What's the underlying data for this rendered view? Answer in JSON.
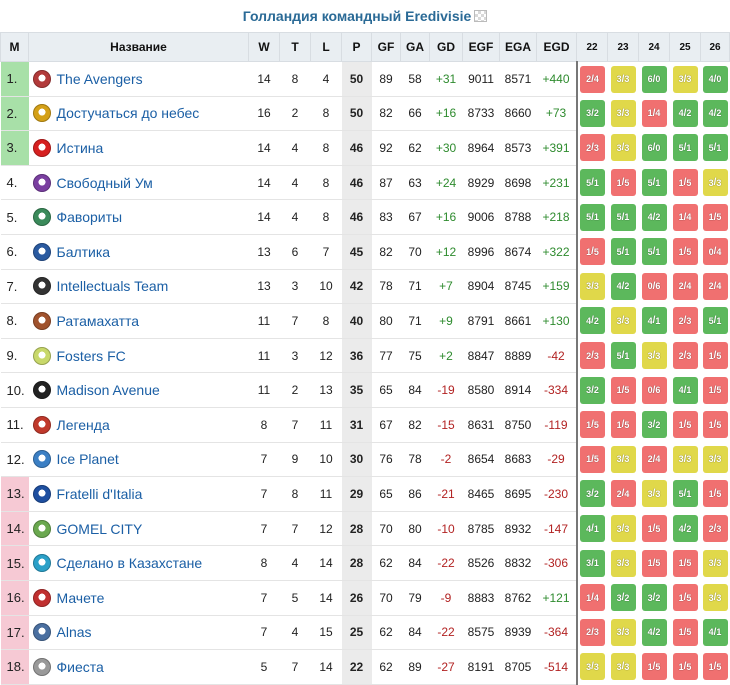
{
  "title": "Голландия командный Eredivisie",
  "headers": {
    "pos": "М",
    "name": "Название",
    "w": "W",
    "t": "T",
    "l": "L",
    "p": "P",
    "gf": "GF",
    "ga": "GA",
    "gd": "GD",
    "egf": "EGF",
    "ega": "EGA",
    "egd": "EGD",
    "gw": [
      "22",
      "23",
      "24",
      "25",
      "26"
    ]
  },
  "colors": {
    "promo": "#a8e0a8",
    "relegation": "#f6c9d4",
    "win": "#5cb85c",
    "draw": "#e0d84a",
    "loss": "#f07070",
    "link": "#1b5fa5"
  },
  "rows": [
    {
      "pos": "1.",
      "name": "The Avengers",
      "w": "14",
      "t": "8",
      "l": "4",
      "p": "50",
      "gf": "89",
      "ga": "58",
      "gd": "+31",
      "egf": "9011",
      "ega": "8571",
      "egd": "+440",
      "zone": "promo",
      "logo": "#b23a3a",
      "res": [
        [
          "L",
          "2",
          "4"
        ],
        [
          "D",
          "3",
          "3"
        ],
        [
          "W",
          "6",
          "0"
        ],
        [
          "D",
          "3",
          "3"
        ],
        [
          "W",
          "4",
          "0"
        ]
      ]
    },
    {
      "pos": "2.",
      "name": "Достучаться до небес",
      "w": "16",
      "t": "2",
      "l": "8",
      "p": "50",
      "gf": "82",
      "ga": "66",
      "gd": "+16",
      "egf": "8733",
      "ega": "8660",
      "egd": "+73",
      "zone": "promo",
      "logo": "#d4a017",
      "res": [
        [
          "W",
          "3",
          "2"
        ],
        [
          "D",
          "3",
          "3"
        ],
        [
          "L",
          "1",
          "4"
        ],
        [
          "W",
          "4",
          "2"
        ],
        [
          "W",
          "4",
          "2"
        ]
      ]
    },
    {
      "pos": "3.",
      "name": "Истина",
      "w": "14",
      "t": "4",
      "l": "8",
      "p": "46",
      "gf": "92",
      "ga": "62",
      "gd": "+30",
      "egf": "8964",
      "ega": "8573",
      "egd": "+391",
      "zone": "promo",
      "logo": "#d62020",
      "res": [
        [
          "L",
          "2",
          "3"
        ],
        [
          "D",
          "3",
          "3"
        ],
        [
          "W",
          "6",
          "0"
        ],
        [
          "W",
          "5",
          "1"
        ],
        [
          "W",
          "5",
          "1"
        ]
      ]
    },
    {
      "pos": "4.",
      "name": "Свободный Ум",
      "w": "14",
      "t": "4",
      "l": "8",
      "p": "46",
      "gf": "87",
      "ga": "63",
      "gd": "+24",
      "egf": "8929",
      "ega": "8698",
      "egd": "+231",
      "zone": "",
      "logo": "#7a3fa0",
      "res": [
        [
          "W",
          "5",
          "1"
        ],
        [
          "L",
          "1",
          "5"
        ],
        [
          "W",
          "5",
          "1"
        ],
        [
          "L",
          "1",
          "5"
        ],
        [
          "D",
          "3",
          "3"
        ]
      ]
    },
    {
      "pos": "5.",
      "name": "Фавориты",
      "w": "14",
      "t": "4",
      "l": "8",
      "p": "46",
      "gf": "83",
      "ga": "67",
      "gd": "+16",
      "egf": "9006",
      "ega": "8788",
      "egd": "+218",
      "zone": "",
      "logo": "#3a8a5a",
      "res": [
        [
          "W",
          "5",
          "1"
        ],
        [
          "W",
          "5",
          "1"
        ],
        [
          "W",
          "4",
          "2"
        ],
        [
          "L",
          "1",
          "4"
        ],
        [
          "L",
          "1",
          "5"
        ]
      ]
    },
    {
      "pos": "6.",
      "name": "Балтика",
      "w": "13",
      "t": "6",
      "l": "7",
      "p": "45",
      "gf": "82",
      "ga": "70",
      "gd": "+12",
      "egf": "8996",
      "ega": "8674",
      "egd": "+322",
      "zone": "",
      "logo": "#2a5aa0",
      "res": [
        [
          "L",
          "1",
          "5"
        ],
        [
          "W",
          "5",
          "1"
        ],
        [
          "W",
          "5",
          "1"
        ],
        [
          "L",
          "1",
          "5"
        ],
        [
          "L",
          "0",
          "4"
        ]
      ]
    },
    {
      "pos": "7.",
      "name": "Intellectuals Team",
      "w": "13",
      "t": "3",
      "l": "10",
      "p": "42",
      "gf": "78",
      "ga": "71",
      "gd": "+7",
      "egf": "8904",
      "ega": "8745",
      "egd": "+159",
      "zone": "",
      "logo": "#333333",
      "res": [
        [
          "D",
          "3",
          "3"
        ],
        [
          "W",
          "4",
          "2"
        ],
        [
          "L",
          "0",
          "6"
        ],
        [
          "L",
          "2",
          "4"
        ],
        [
          "L",
          "2",
          "4"
        ]
      ]
    },
    {
      "pos": "8.",
      "name": "Ратамахатта",
      "w": "11",
      "t": "7",
      "l": "8",
      "p": "40",
      "gf": "80",
      "ga": "71",
      "gd": "+9",
      "egf": "8791",
      "ega": "8661",
      "egd": "+130",
      "zone": "",
      "logo": "#a0522d",
      "res": [
        [
          "W",
          "4",
          "2"
        ],
        [
          "D",
          "3",
          "3"
        ],
        [
          "W",
          "4",
          "1"
        ],
        [
          "L",
          "2",
          "3"
        ],
        [
          "W",
          "5",
          "1"
        ]
      ]
    },
    {
      "pos": "9.",
      "name": "Fosters FC",
      "w": "11",
      "t": "3",
      "l": "12",
      "p": "36",
      "gf": "77",
      "ga": "75",
      "gd": "+2",
      "egf": "8847",
      "ega": "8889",
      "egd": "-42",
      "zone": "",
      "logo": "#c8d86a",
      "res": [
        [
          "L",
          "2",
          "3"
        ],
        [
          "W",
          "5",
          "1"
        ],
        [
          "D",
          "3",
          "3"
        ],
        [
          "L",
          "2",
          "3"
        ],
        [
          "L",
          "1",
          "5"
        ]
      ]
    },
    {
      "pos": "10.",
      "name": "Madison Avenue",
      "w": "11",
      "t": "2",
      "l": "13",
      "p": "35",
      "gf": "65",
      "ga": "84",
      "gd": "-19",
      "egf": "8580",
      "ega": "8914",
      "egd": "-334",
      "zone": "",
      "logo": "#222222",
      "res": [
        [
          "W",
          "3",
          "2"
        ],
        [
          "L",
          "1",
          "5"
        ],
        [
          "L",
          "0",
          "6"
        ],
        [
          "W",
          "4",
          "1"
        ],
        [
          "L",
          "1",
          "5"
        ]
      ]
    },
    {
      "pos": "11.",
      "name": "Легенда",
      "w": "8",
      "t": "7",
      "l": "11",
      "p": "31",
      "gf": "67",
      "ga": "82",
      "gd": "-15",
      "egf": "8631",
      "ega": "8750",
      "egd": "-119",
      "zone": "",
      "logo": "#c0392b",
      "res": [
        [
          "L",
          "1",
          "5"
        ],
        [
          "L",
          "1",
          "5"
        ],
        [
          "W",
          "3",
          "2"
        ],
        [
          "L",
          "1",
          "5"
        ],
        [
          "L",
          "1",
          "5"
        ]
      ]
    },
    {
      "pos": "12.",
      "name": "Ice Planet",
      "w": "7",
      "t": "9",
      "l": "10",
      "p": "30",
      "gf": "76",
      "ga": "78",
      "gd": "-2",
      "egf": "8654",
      "ega": "8683",
      "egd": "-29",
      "zone": "",
      "logo": "#3b7fc4",
      "res": [
        [
          "L",
          "1",
          "5"
        ],
        [
          "D",
          "3",
          "3"
        ],
        [
          "L",
          "2",
          "4"
        ],
        [
          "D",
          "3",
          "3"
        ],
        [
          "D",
          "3",
          "3"
        ]
      ]
    },
    {
      "pos": "13.",
      "name": "Fratelli d'Italia",
      "w": "7",
      "t": "8",
      "l": "11",
      "p": "29",
      "gf": "65",
      "ga": "86",
      "gd": "-21",
      "egf": "8465",
      "ega": "8695",
      "egd": "-230",
      "zone": "rel",
      "logo": "#1e4fa0",
      "res": [
        [
          "W",
          "3",
          "2"
        ],
        [
          "L",
          "2",
          "4"
        ],
        [
          "D",
          "3",
          "3"
        ],
        [
          "W",
          "5",
          "1"
        ],
        [
          "L",
          "1",
          "5"
        ]
      ]
    },
    {
      "pos": "14.",
      "name": "GOMEL CITY",
      "w": "7",
      "t": "7",
      "l": "12",
      "p": "28",
      "gf": "70",
      "ga": "80",
      "gd": "-10",
      "egf": "8785",
      "ega": "8932",
      "egd": "-147",
      "zone": "rel",
      "logo": "#6aa84f",
      "res": [
        [
          "W",
          "4",
          "1"
        ],
        [
          "D",
          "3",
          "3"
        ],
        [
          "L",
          "1",
          "5"
        ],
        [
          "W",
          "4",
          "2"
        ],
        [
          "L",
          "2",
          "3"
        ]
      ]
    },
    {
      "pos": "15.",
      "name": "Сделано в Казахстане",
      "w": "8",
      "t": "4",
      "l": "14",
      "p": "28",
      "gf": "62",
      "ga": "84",
      "gd": "-22",
      "egf": "8526",
      "ega": "8832",
      "egd": "-306",
      "zone": "rel",
      "logo": "#2ba0c8",
      "res": [
        [
          "W",
          "3",
          "1"
        ],
        [
          "D",
          "3",
          "3"
        ],
        [
          "L",
          "1",
          "5"
        ],
        [
          "L",
          "1",
          "5"
        ],
        [
          "D",
          "3",
          "3"
        ]
      ]
    },
    {
      "pos": "16.",
      "name": "Мачете",
      "w": "7",
      "t": "5",
      "l": "14",
      "p": "26",
      "gf": "70",
      "ga": "79",
      "gd": "-9",
      "egf": "8883",
      "ega": "8762",
      "egd": "+121",
      "zone": "rel",
      "logo": "#c03030",
      "res": [
        [
          "L",
          "1",
          "4"
        ],
        [
          "W",
          "3",
          "2"
        ],
        [
          "W",
          "3",
          "2"
        ],
        [
          "L",
          "1",
          "5"
        ],
        [
          "D",
          "3",
          "3"
        ]
      ]
    },
    {
      "pos": "17.",
      "name": "Alnas",
      "w": "7",
      "t": "4",
      "l": "15",
      "p": "25",
      "gf": "62",
      "ga": "84",
      "gd": "-22",
      "egf": "8575",
      "ega": "8939",
      "egd": "-364",
      "zone": "rel",
      "logo": "#4a6fa0",
      "res": [
        [
          "L",
          "2",
          "3"
        ],
        [
          "D",
          "3",
          "3"
        ],
        [
          "W",
          "4",
          "2"
        ],
        [
          "L",
          "1",
          "5"
        ],
        [
          "W",
          "4",
          "1"
        ]
      ]
    },
    {
      "pos": "18.",
      "name": "Фиеста",
      "w": "5",
      "t": "7",
      "l": "14",
      "p": "22",
      "gf": "62",
      "ga": "89",
      "gd": "-27",
      "egf": "8191",
      "ega": "8705",
      "egd": "-514",
      "zone": "rel",
      "logo": "#999999",
      "res": [
        [
          "D",
          "3",
          "3"
        ],
        [
          "D",
          "3",
          "3"
        ],
        [
          "L",
          "1",
          "5"
        ],
        [
          "L",
          "1",
          "5"
        ],
        [
          "L",
          "1",
          "5"
        ]
      ]
    }
  ]
}
